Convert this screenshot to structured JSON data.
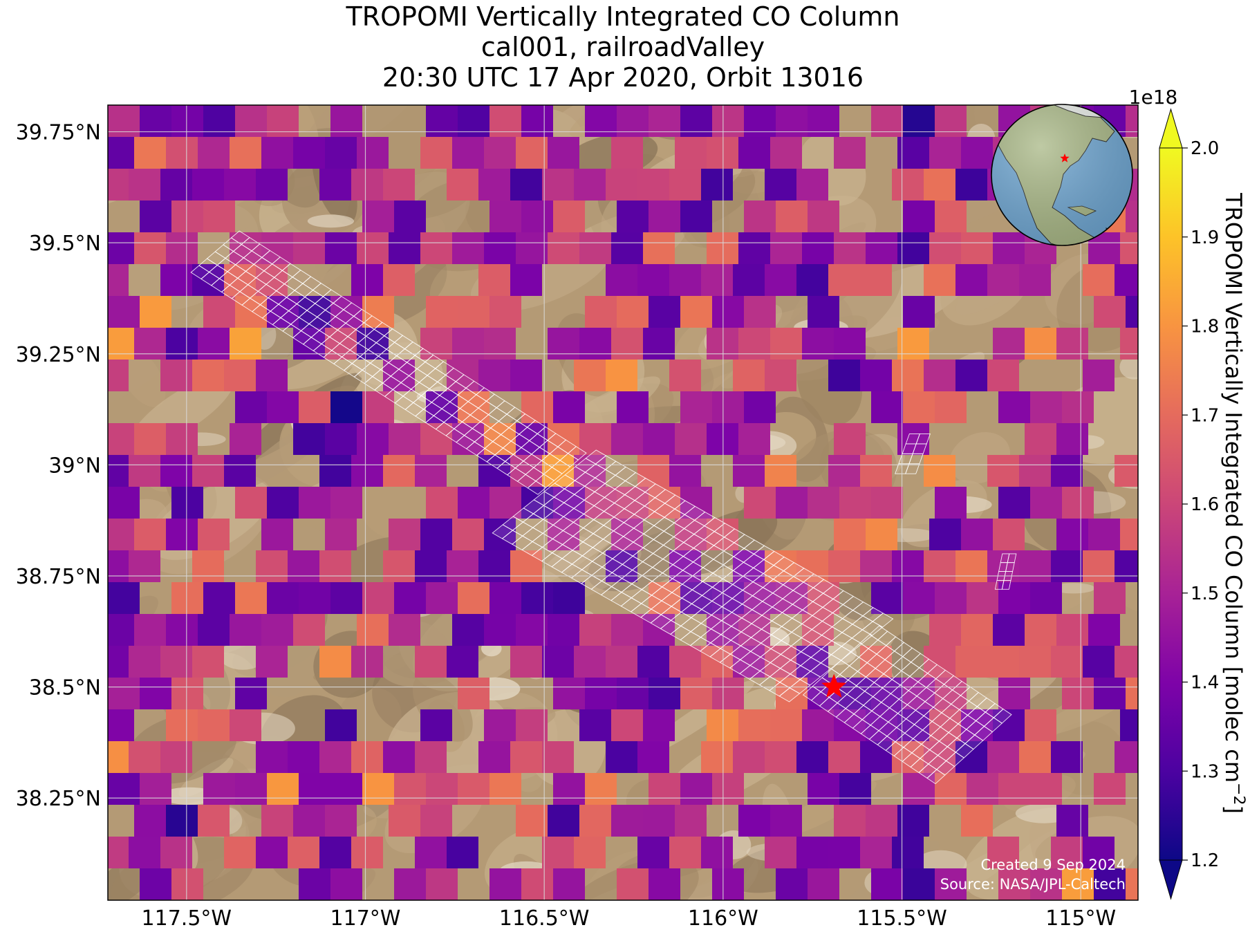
{
  "title": {
    "line1": "TROPOMI Vertically Integrated CO Column",
    "line2": "cal001, railroadValley",
    "line3": "20:30 UTC 17 Apr 2020, Orbit 13016"
  },
  "map": {
    "lon_range": [
      -117.72,
      -114.84
    ],
    "lat_range": [
      38.02,
      39.81
    ],
    "lat_ticks": [
      {
        "value": 39.75,
        "label": "39.75°N"
      },
      {
        "value": 39.5,
        "label": "39.5°N"
      },
      {
        "value": 39.25,
        "label": "39.25°N"
      },
      {
        "value": 39.0,
        "label": "39°N"
      },
      {
        "value": 38.75,
        "label": "38.75°N"
      },
      {
        "value": 38.5,
        "label": "38.5°N"
      },
      {
        "value": 38.25,
        "label": "38.25°N"
      }
    ],
    "lon_ticks": [
      {
        "value": -117.5,
        "label": "117.5°W"
      },
      {
        "value": -117.0,
        "label": "117°W"
      },
      {
        "value": -116.5,
        "label": "116.5°W"
      },
      {
        "value": -116.0,
        "label": "116°W"
      },
      {
        "value": -115.5,
        "label": "115.5°W"
      },
      {
        "value": -115.0,
        "label": "115°W"
      }
    ],
    "grid": true,
    "site_marker": {
      "lon": -115.69,
      "lat": 38.5,
      "symbol": "star",
      "color": "#ff0000"
    },
    "basemap": "satellite-desert",
    "overlay": "tropomi-co-pixels-and-target-footprints"
  },
  "colorbar": {
    "label": "TROPOMI Vertically Integrated CO Column [molec cm",
    "label_sup": "−2",
    "label_close": "]",
    "multiplier": "1e18",
    "min": 1.2,
    "max": 2.0,
    "extend": "both",
    "colormap": "plasma",
    "ticks": [
      "1.2",
      "1.3",
      "1.4",
      "1.5",
      "1.6",
      "1.7",
      "1.8",
      "1.9",
      "2.0"
    ]
  },
  "inset_globe": {
    "ocean": "#6ea6d2",
    "land": "#9bb27d",
    "marker_color": "#ff0000",
    "symbol": "star"
  },
  "credits": {
    "created": "Created 9 Sep 2024",
    "source": "Source: NASA/JPL-Caltech"
  }
}
